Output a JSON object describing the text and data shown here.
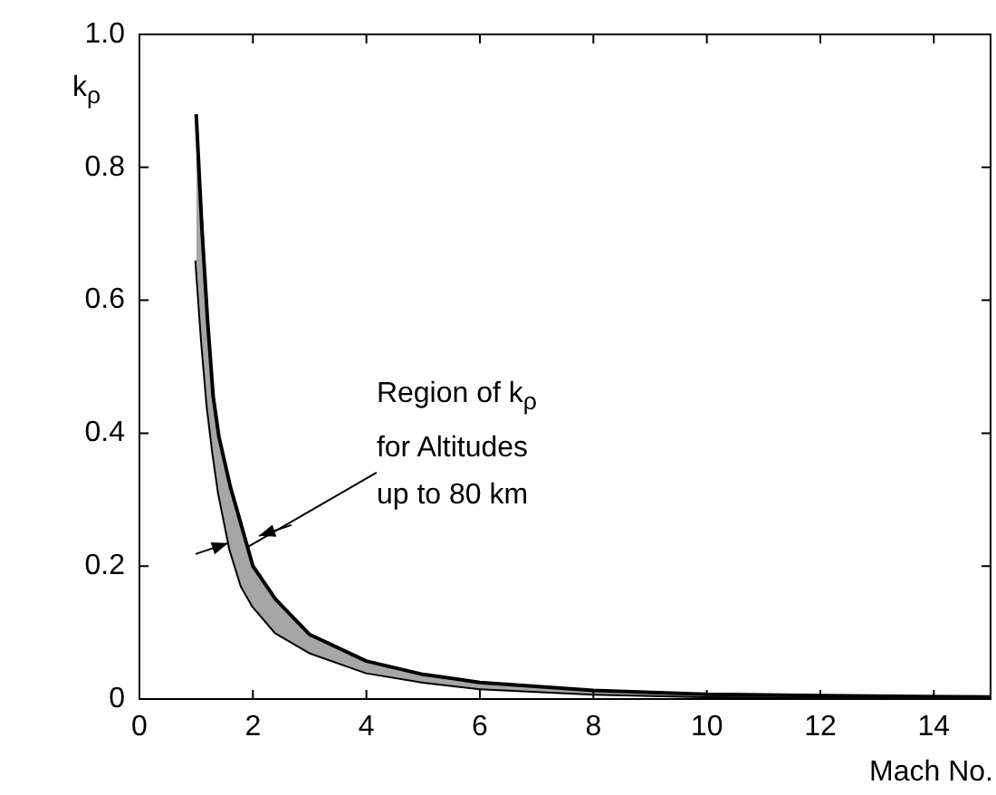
{
  "chart_data": {
    "type": "line",
    "xlabel": "Mach No.",
    "ylabel": "k$_{ρ}$",
    "x": [
      1,
      1.1,
      1.2,
      1.3,
      1.4,
      1.6,
      1.8,
      2,
      2.4,
      3,
      4,
      5,
      6,
      8,
      10,
      12,
      15
    ],
    "series": [
      {
        "color": "#000000",
        "values": [
          0.88,
          0.71,
          0.57,
          0.455,
          0.395,
          0.32,
          0.26,
          0.2,
          0.15,
          0.097,
          0.057,
          0.037,
          0.025,
          0.013,
          0.007,
          0.005,
          0.003
        ]
      },
      {
        "color": "#000000",
        "values": [
          0.66,
          0.54,
          0.44,
          0.37,
          0.31,
          0.225,
          0.17,
          0.14,
          0.1,
          0.07,
          0.04,
          0.026,
          0.016,
          0.008,
          0.004,
          0.003,
          0.002
        ],
        "upper": [
          0.88,
          0.71,
          0.57,
          0.455,
          0.395,
          0.32,
          0.26,
          0.2,
          0.15,
          0.097,
          0.057,
          0.037,
          0.025,
          0.013,
          0.007,
          0.005,
          0.003
        ],
        "lower": [
          0.66,
          0.54,
          0.44,
          0.37,
          0.31,
          0.225,
          0.17,
          0.14,
          0.1,
          0.07,
          0.04,
          0.026,
          0.016,
          0.008,
          0.004,
          0.003,
          0.002
        ]
      }
    ],
    "xlim": [
      0,
      15
    ],
    "xticks": [
      0,
      2,
      4,
      6,
      8,
      10,
      12,
      14
    ],
    "ylim": [
      0,
      1
    ],
    "yticks": [
      0,
      0.2,
      0.4,
      0.6,
      0.8,
      {
        "value": 1,
        "label": "1.0"
      }
    ],
    "grid": false,
    "legend": false,
    "marker": "none",
    "line_style": "solid",
    "annotations": [
      {
        "text": "Region of k$_{ρ}$\nfor Altitudes\nup to 80 km",
        "x": 1.85,
        "y": 0.24
      }
    ]
  }
}
